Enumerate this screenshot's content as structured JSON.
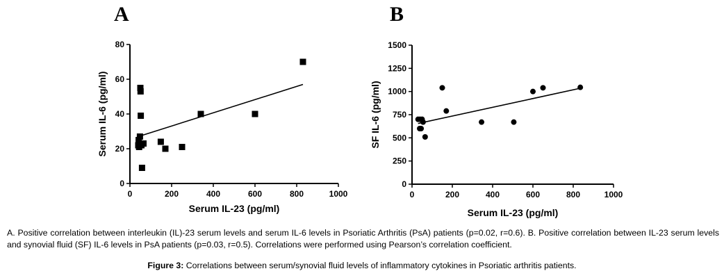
{
  "panels": {
    "a": "A",
    "b": "B"
  },
  "chart_data": [
    {
      "type": "scatter",
      "title": "",
      "xlabel": "Serum IL-23 (pg/ml)",
      "ylabel": "Serum IL-6  (pg/ml)",
      "xlim": [
        0,
        1000
      ],
      "ylim": [
        0,
        80
      ],
      "xticks": [
        0,
        200,
        400,
        600,
        800,
        1000
      ],
      "yticks": [
        0,
        20,
        40,
        60,
        80
      ],
      "marker": "square",
      "points": [
        {
          "x": 40,
          "y": 22
        },
        {
          "x": 42,
          "y": 25
        },
        {
          "x": 44,
          "y": 21
        },
        {
          "x": 48,
          "y": 27
        },
        {
          "x": 50,
          "y": 55
        },
        {
          "x": 51,
          "y": 53
        },
        {
          "x": 52,
          "y": 39
        },
        {
          "x": 55,
          "y": 22
        },
        {
          "x": 58,
          "y": 9
        },
        {
          "x": 65,
          "y": 23
        },
        {
          "x": 148,
          "y": 24
        },
        {
          "x": 170,
          "y": 20
        },
        {
          "x": 250,
          "y": 21
        },
        {
          "x": 340,
          "y": 40
        },
        {
          "x": 600,
          "y": 40
        },
        {
          "x": 830,
          "y": 70
        }
      ],
      "trendline": {
        "x1": 40,
        "y1": 27,
        "x2": 830,
        "y2": 57
      }
    },
    {
      "type": "scatter",
      "title": "",
      "xlabel": "Serum IL-23 (pg/ml)",
      "ylabel": "SF IL-6 (pg/ml)",
      "xlim": [
        0,
        1000
      ],
      "ylim": [
        0,
        1500
      ],
      "xticks": [
        0,
        200,
        400,
        600,
        800,
        1000
      ],
      "yticks": [
        0,
        250,
        500,
        750,
        1000,
        1250,
        1500
      ],
      "marker": "circle",
      "points": [
        {
          "x": 30,
          "y": 700
        },
        {
          "x": 38,
          "y": 600
        },
        {
          "x": 40,
          "y": 700
        },
        {
          "x": 45,
          "y": 600
        },
        {
          "x": 50,
          "y": 700
        },
        {
          "x": 55,
          "y": 670
        },
        {
          "x": 65,
          "y": 510
        },
        {
          "x": 150,
          "y": 1040
        },
        {
          "x": 170,
          "y": 790
        },
        {
          "x": 345,
          "y": 670
        },
        {
          "x": 505,
          "y": 670
        },
        {
          "x": 600,
          "y": 1000
        },
        {
          "x": 650,
          "y": 1040
        },
        {
          "x": 835,
          "y": 1045
        }
      ],
      "trendline": {
        "x1": 30,
        "y1": 655,
        "x2": 835,
        "y2": 1035
      }
    }
  ],
  "caption": "A. Positive correlation between interleukin (IL)-23 serum levels and serum IL-6 levels in Psoriatic Arthritis (PsA) patients (p=0.02, r=0.6). B. Positive correlation between IL-23 serum levels and synovial fluid (SF) IL-6 levels in PsA patients (p=0.03, r=0.5). Correlations were performed using Pearson’s correlation coefficient.",
  "figure": {
    "label": "Figure 3:",
    "text": " Correlations between serum/synovial fluid levels of inflammatory cytokines in Psoriatic arthritis patients."
  }
}
